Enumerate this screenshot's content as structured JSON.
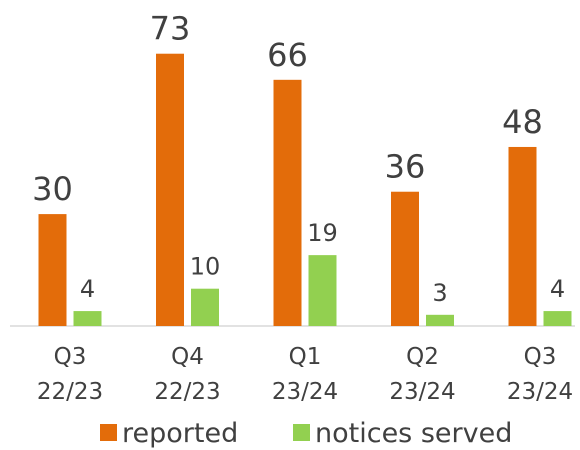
{
  "chart_data": {
    "type": "bar",
    "categories": [
      "Q3 22/23",
      "Q4 22/23",
      "Q1 23/24",
      "Q2 23/24",
      "Q3 23/24"
    ],
    "series": [
      {
        "name": "reported",
        "color": "#e36c0a",
        "values": [
          30,
          73,
          66,
          36,
          48
        ]
      },
      {
        "name": "notices served",
        "color": "#92d050",
        "values": [
          4,
          10,
          19,
          3,
          4
        ]
      }
    ],
    "legend": "bottom"
  }
}
